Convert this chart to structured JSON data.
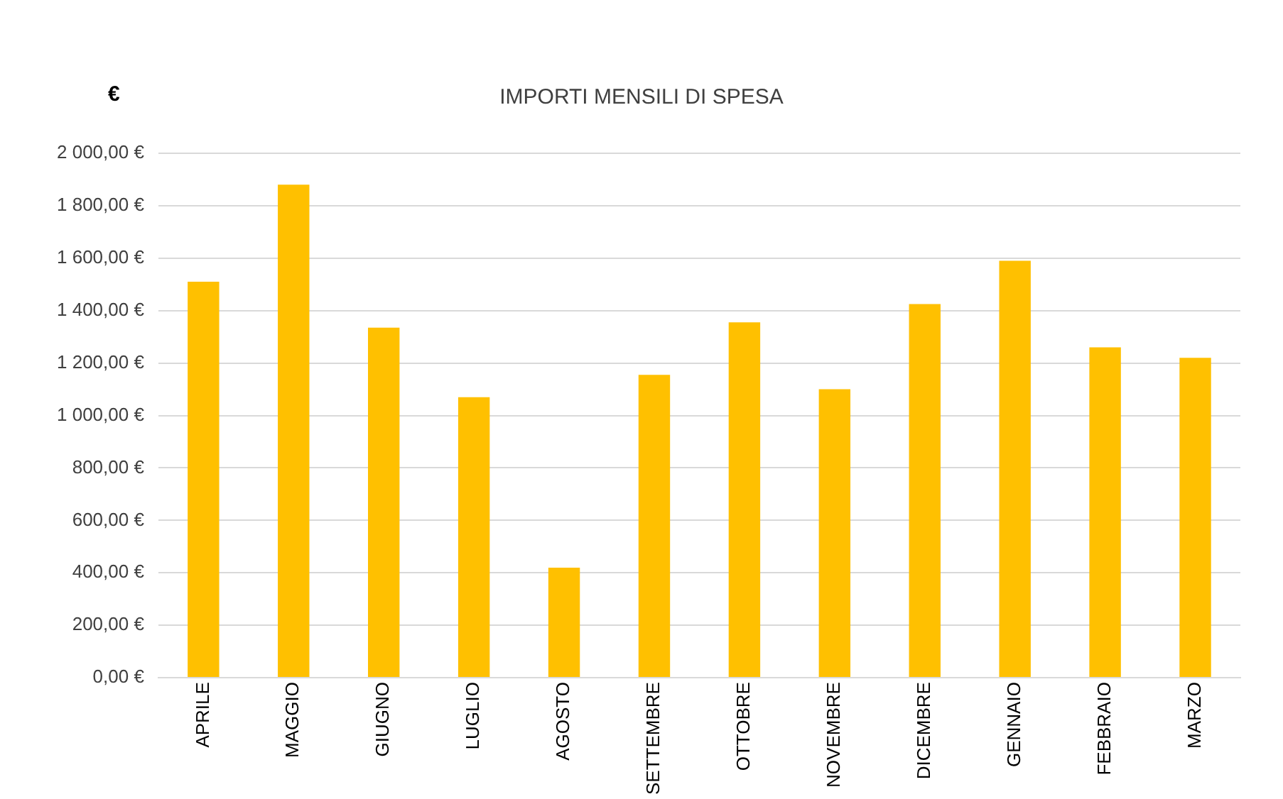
{
  "chart_data": {
    "type": "bar",
    "title": "IMPORTI MENSILI DI SPESA",
    "ylabel": "€",
    "categories": [
      "APRILE",
      "MAGGIO",
      "GIUGNO",
      "LUGLIO",
      "AGOSTO",
      "SETTEMBRE",
      "OTTOBRE",
      "NOVEMBRE",
      "DICEMBRE",
      "GENNAIO",
      "FEBBRAIO",
      "MARZO"
    ],
    "values": [
      1510,
      1880,
      1335,
      1070,
      420,
      1155,
      1355,
      1100,
      1425,
      1590,
      1260,
      1220
    ],
    "color": "#ffc000",
    "ylim": [
      0,
      2000
    ],
    "yticks": [
      {
        "value": 0,
        "label": "0,00 €"
      },
      {
        "value": 200,
        "label": "200,00 €"
      },
      {
        "value": 400,
        "label": "400,00 €"
      },
      {
        "value": 600,
        "label": "600,00 €"
      },
      {
        "value": 800,
        "label": "800,00 €"
      },
      {
        "value": 1000,
        "label": "1 000,00 €"
      },
      {
        "value": 1200,
        "label": "1 200,00 €"
      },
      {
        "value": 1400,
        "label": "1 400,00 €"
      },
      {
        "value": 1600,
        "label": "1 600,00 €"
      },
      {
        "value": 1800,
        "label": "1 800,00 €"
      },
      {
        "value": 2000,
        "label": "2 000,00 €"
      }
    ],
    "grid": "y",
    "legend": false
  }
}
